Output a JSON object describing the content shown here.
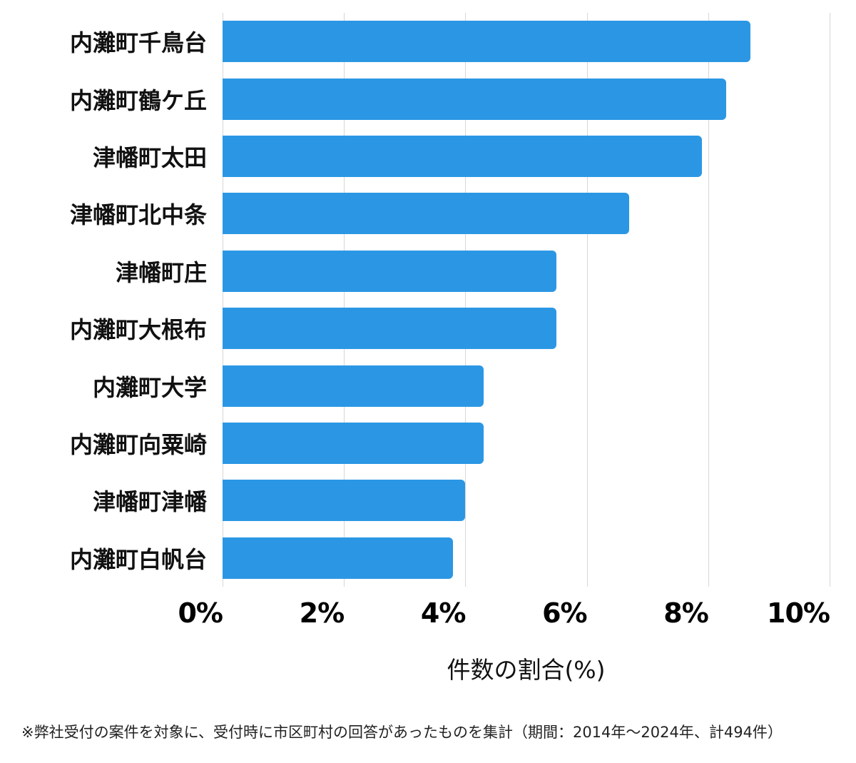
{
  "chart_data": {
    "type": "bar",
    "orientation": "horizontal",
    "title": "",
    "categories": [
      "内灘町千鳥台",
      "内灘町鶴ケ丘",
      "津幡町太田",
      "津幡町北中条",
      "津幡町庄",
      "内灘町大根布",
      "内灘町大学",
      "内灘町向粟崎",
      "津幡町津幡",
      "内灘町白帆台"
    ],
    "values": [
      8.7,
      8.3,
      7.9,
      6.7,
      5.5,
      5.5,
      4.3,
      4.3,
      4.0,
      3.8
    ],
    "xlabel": "件数の割合(%)",
    "ylabel": "",
    "xlim": [
      0,
      10
    ],
    "x_tick_values": [
      0,
      2,
      4,
      6,
      8,
      10
    ],
    "x_tick_labels": [
      "0%",
      "2%",
      "4%",
      "6%",
      "8%",
      "10%"
    ],
    "grid": true,
    "legend": false,
    "bar_color": "#2b97e4",
    "gridline_color": "#d7d7d7"
  },
  "footnote": "※弊社受付の案件を対象に、受付時に市区町村の回答があったものを集計（期間：2014年～2024年、計494件）"
}
